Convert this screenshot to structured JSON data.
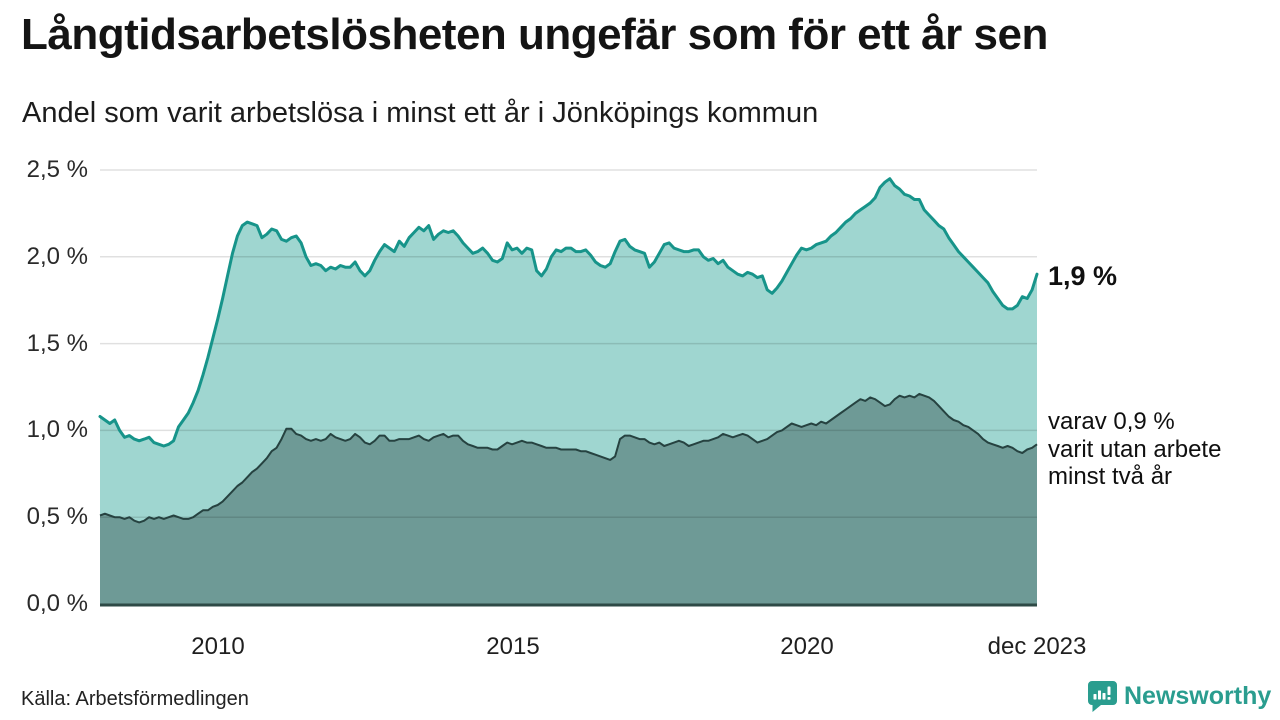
{
  "header": {
    "title": "Långtidsarbetslösheten ungefär som för ett år sen",
    "subtitle": "Andel som varit arbetslösa i minst ett år i Jönköpings kommun"
  },
  "chart_data": {
    "type": "area",
    "title": "Långtidsarbetslösheten ungefär som för ett år sen",
    "subtitle": "Andel som varit arbetslösa i minst ett år i Jönköpings kommun",
    "unit": "%",
    "x_start_month": "2008-01",
    "x_end_month": "2023-12",
    "ylim": [
      0,
      2.5
    ],
    "grid": true,
    "y_tick_labels": [
      "2,5 %",
      "2,0 %",
      "1,5 %",
      "1,0 %",
      "0,5 %",
      "0,0 %"
    ],
    "y_tick_values": [
      2.5,
      2.0,
      1.5,
      1.0,
      0.5,
      0.0
    ],
    "x_ticks": [
      {
        "label": "2010",
        "month_index": 24
      },
      {
        "label": "2015",
        "month_index": 84
      },
      {
        "label": "2020",
        "month_index": 144
      },
      {
        "label": "dec 2023",
        "month_index": 191
      }
    ],
    "series": [
      {
        "name": "Andel arbetslösa minst ett år",
        "line_color": "#17948a",
        "fill_color": "#9fd6d0",
        "end_value": 1.9,
        "end_label": "1,9 %",
        "values": [
          1.08,
          1.06,
          1.04,
          1.06,
          1.0,
          0.96,
          0.97,
          0.95,
          0.94,
          0.95,
          0.96,
          0.93,
          0.92,
          0.91,
          0.92,
          0.94,
          1.02,
          1.06,
          1.1,
          1.16,
          1.23,
          1.32,
          1.42,
          1.53,
          1.64,
          1.76,
          1.89,
          2.02,
          2.12,
          2.18,
          2.2,
          2.19,
          2.18,
          2.11,
          2.13,
          2.16,
          2.15,
          2.1,
          2.09,
          2.11,
          2.12,
          2.08,
          2.0,
          1.95,
          1.96,
          1.95,
          1.92,
          1.94,
          1.93,
          1.95,
          1.94,
          1.94,
          1.97,
          1.92,
          1.89,
          1.92,
          1.98,
          2.03,
          2.07,
          2.05,
          2.03,
          2.09,
          2.06,
          2.11,
          2.14,
          2.17,
          2.15,
          2.18,
          2.1,
          2.13,
          2.15,
          2.14,
          2.15,
          2.12,
          2.08,
          2.05,
          2.02,
          2.03,
          2.05,
          2.02,
          1.98,
          1.97,
          1.99,
          2.08,
          2.04,
          2.05,
          2.02,
          2.05,
          2.04,
          1.92,
          1.89,
          1.93,
          2.0,
          2.04,
          2.03,
          2.05,
          2.05,
          2.03,
          2.03,
          2.04,
          2.01,
          1.97,
          1.95,
          1.94,
          1.96,
          2.03,
          2.09,
          2.1,
          2.06,
          2.04,
          2.03,
          2.02,
          1.94,
          1.97,
          2.02,
          2.07,
          2.08,
          2.05,
          2.04,
          2.03,
          2.03,
          2.04,
          2.04,
          2.0,
          1.98,
          1.99,
          1.96,
          1.98,
          1.94,
          1.92,
          1.9,
          1.89,
          1.91,
          1.9,
          1.88,
          1.89,
          1.81,
          1.79,
          1.82,
          1.86,
          1.91,
          1.96,
          2.01,
          2.05,
          2.04,
          2.05,
          2.07,
          2.08,
          2.09,
          2.12,
          2.14,
          2.17,
          2.2,
          2.22,
          2.25,
          2.27,
          2.29,
          2.31,
          2.34,
          2.4,
          2.43,
          2.45,
          2.41,
          2.39,
          2.36,
          2.35,
          2.33,
          2.33,
          2.27,
          2.24,
          2.21,
          2.18,
          2.16,
          2.11,
          2.07,
          2.03,
          2.0,
          1.97,
          1.94,
          1.91,
          1.88,
          1.85,
          1.8,
          1.76,
          1.72,
          1.7,
          1.7,
          1.72,
          1.77,
          1.76,
          1.81,
          1.9
        ]
      },
      {
        "name": "varav utan arbete minst två år",
        "line_color": "#264240",
        "fill_color": "#6e9a96",
        "end_value": 0.9,
        "end_label": "varav 0,9 % varit utan arbete minst två år",
        "values": [
          0.51,
          0.52,
          0.51,
          0.5,
          0.5,
          0.49,
          0.5,
          0.48,
          0.47,
          0.48,
          0.5,
          0.49,
          0.5,
          0.49,
          0.5,
          0.51,
          0.5,
          0.49,
          0.49,
          0.5,
          0.52,
          0.54,
          0.54,
          0.56,
          0.57,
          0.59,
          0.62,
          0.65,
          0.68,
          0.7,
          0.73,
          0.76,
          0.78,
          0.81,
          0.84,
          0.88,
          0.9,
          0.95,
          1.01,
          1.01,
          0.98,
          0.97,
          0.95,
          0.94,
          0.95,
          0.94,
          0.95,
          0.98,
          0.96,
          0.95,
          0.94,
          0.95,
          0.98,
          0.96,
          0.93,
          0.92,
          0.94,
          0.97,
          0.97,
          0.94,
          0.94,
          0.95,
          0.95,
          0.95,
          0.96,
          0.97,
          0.95,
          0.94,
          0.96,
          0.97,
          0.98,
          0.96,
          0.97,
          0.97,
          0.94,
          0.92,
          0.91,
          0.9,
          0.9,
          0.9,
          0.89,
          0.89,
          0.91,
          0.93,
          0.92,
          0.93,
          0.94,
          0.93,
          0.93,
          0.92,
          0.91,
          0.9,
          0.9,
          0.9,
          0.89,
          0.89,
          0.89,
          0.89,
          0.88,
          0.88,
          0.87,
          0.86,
          0.85,
          0.84,
          0.83,
          0.85,
          0.95,
          0.97,
          0.97,
          0.96,
          0.95,
          0.95,
          0.93,
          0.92,
          0.93,
          0.91,
          0.92,
          0.93,
          0.94,
          0.93,
          0.91,
          0.92,
          0.93,
          0.94,
          0.94,
          0.95,
          0.96,
          0.98,
          0.97,
          0.96,
          0.97,
          0.98,
          0.97,
          0.95,
          0.93,
          0.94,
          0.95,
          0.97,
          0.99,
          1.0,
          1.02,
          1.04,
          1.03,
          1.02,
          1.03,
          1.04,
          1.03,
          1.05,
          1.04,
          1.06,
          1.08,
          1.1,
          1.12,
          1.14,
          1.16,
          1.18,
          1.17,
          1.19,
          1.18,
          1.16,
          1.14,
          1.15,
          1.18,
          1.2,
          1.19,
          1.2,
          1.19,
          1.21,
          1.2,
          1.19,
          1.17,
          1.14,
          1.11,
          1.08,
          1.06,
          1.05,
          1.03,
          1.02,
          1.0,
          0.98,
          0.95,
          0.93,
          0.92,
          0.91,
          0.9,
          0.91,
          0.9,
          0.88,
          0.87,
          0.89,
          0.9,
          0.92
        ]
      }
    ],
    "annotations": {
      "latest_total": "1,9 %",
      "two_year_line1": "varav 0,9 %",
      "two_year_line2": "varit utan arbete",
      "two_year_line3": "minst två år"
    },
    "legend_position": "none"
  },
  "footer": {
    "source": "Källa: Arbetsförmedlingen",
    "brand": "Newsworthy"
  },
  "colors": {
    "accent_teal_line": "#17948a",
    "light_fill": "#9fd6d0",
    "dark_fill": "#6e9a96",
    "dark_line": "#264240",
    "baseline": "#2e4a46",
    "gridline": "#dddddd",
    "brand_teal": "#2a9d8f"
  }
}
